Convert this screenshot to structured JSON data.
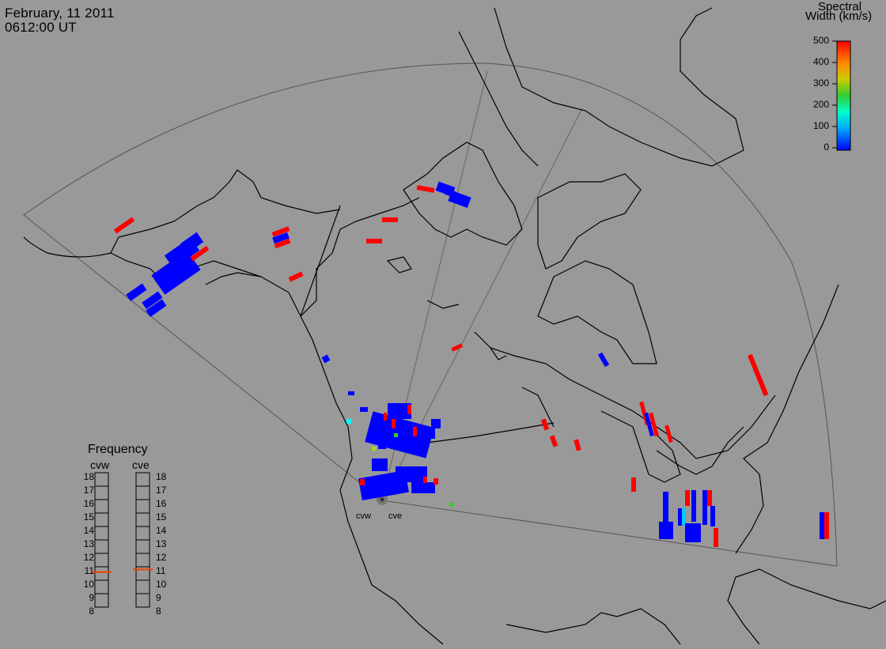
{
  "header": {
    "date": "February, 11 2011",
    "time": "0612:00 UT"
  },
  "colorbar": {
    "title_line1": "Spectral",
    "title_line2": "Width (km/s)",
    "ticks": [
      "500",
      "400",
      "300",
      "200",
      "100",
      "0"
    ],
    "colors": [
      "#0000ff",
      "#00aaff",
      "#00ffcc",
      "#33cc33",
      "#cccc00",
      "#ff8800",
      "#ff0000"
    ]
  },
  "frequency_panel": {
    "title": "Frequency",
    "radars": [
      {
        "name": "cvw",
        "current_mhz": 10.6
      },
      {
        "name": "cve",
        "current_mhz": 10.8
      }
    ],
    "scale": [
      "18",
      "17",
      "16",
      "15",
      "14",
      "13",
      "12",
      "11",
      "10",
      "9",
      "8"
    ],
    "marker_color": "#ee4400"
  },
  "radar_sites": {
    "west_label": "cvw",
    "east_label": "cve"
  },
  "colors": {
    "background": "#999999",
    "coastline": "#000000",
    "fov_outline": "#555555",
    "low_width": "#0000ff",
    "high_width": "#ff0000"
  }
}
